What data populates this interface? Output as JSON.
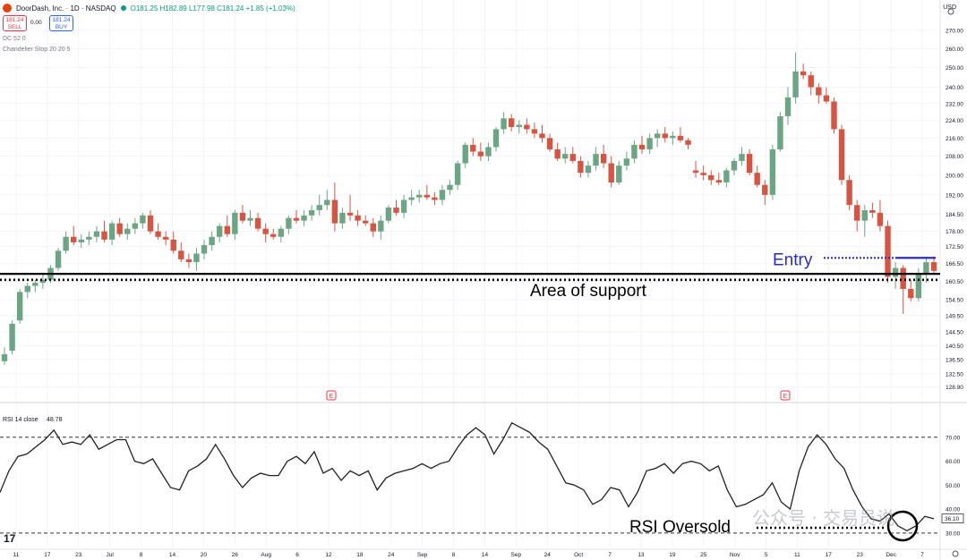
{
  "header": {
    "symbol": "DoorDash, Inc. · 1D · NASDAQ",
    "ohlc": "O181.25 H182.89 L177.98 C181.24 +1.85 (+1.03%)",
    "sell_price": "181.24",
    "sell_label": "SELL",
    "spread": "0.00",
    "buy_price": "181.24",
    "buy_label": "BUY",
    "indicator_1": "DC 52 0",
    "indicator_2": "Chandelier Stop 20 20 5",
    "currency": "USD"
  },
  "colors": {
    "up": "#6ba583",
    "down": "#d75442",
    "support": "#000000",
    "entry": "#2b2bc8",
    "rsi_line": "#222222",
    "earnings": "#f23645"
  },
  "annotations": {
    "support": "Area of support",
    "entry": "Entry",
    "oversold": "RSI Oversold"
  },
  "watermark": "公众号 · 交易员说",
  "chart_data": [
    {
      "type": "candlestick",
      "title": "DoorDash, Inc. · 1D · NASDAQ",
      "ylim": [
        126,
        272
      ],
      "y_scale": "log",
      "y_ticks": [
        "270.00",
        "260.00",
        "250.00",
        "240.00",
        "232.00",
        "224.00",
        "216.00",
        "208.00",
        "200.00",
        "192.00",
        "184.50",
        "178.00",
        "172.50",
        "166.50",
        "160.50",
        "154.50",
        "149.50",
        "144.50",
        "140.50",
        "136.50",
        "132.50",
        "128.90"
      ],
      "x_labels": [
        "11",
        "17",
        "23",
        "Jul",
        "8",
        "14",
        "20",
        "26",
        "Aug",
        "6",
        "12",
        "18",
        "24",
        "Sep",
        "8",
        "14",
        "Sep",
        "24",
        "Oct",
        "7",
        "13",
        "19",
        "25",
        "Nov",
        "5",
        "11",
        "17",
        "23",
        "Dec",
        "7"
      ],
      "candles": [
        [
          136,
          140,
          135,
          138
        ],
        [
          139,
          148,
          138,
          147
        ],
        [
          148,
          158,
          147,
          157
        ],
        [
          157,
          160,
          155,
          159
        ],
        [
          159,
          161,
          157,
          160
        ],
        [
          160,
          163,
          158,
          161
        ],
        [
          161,
          166,
          160,
          165
        ],
        [
          165,
          172,
          164,
          171
        ],
        [
          171,
          178,
          170,
          176
        ],
        [
          176,
          180,
          173,
          174
        ],
        [
          174,
          177,
          172,
          175
        ],
        [
          175,
          178,
          173,
          176
        ],
        [
          176,
          180,
          174,
          178
        ],
        [
          178,
          182,
          174,
          175
        ],
        [
          175,
          182,
          173,
          181
        ],
        [
          181,
          183,
          176,
          177
        ],
        [
          177,
          181,
          175,
          179
        ],
        [
          179,
          183,
          177,
          181
        ],
        [
          181,
          185,
          179,
          184
        ],
        [
          184,
          186,
          177,
          178
        ],
        [
          178,
          181,
          175,
          176
        ],
        [
          176,
          178,
          173,
          175
        ],
        [
          175,
          178,
          170,
          171
        ],
        [
          171,
          174,
          167,
          168
        ],
        [
          168,
          170,
          165,
          167
        ],
        [
          167,
          172,
          164,
          170
        ],
        [
          170,
          175,
          168,
          173
        ],
        [
          173,
          178,
          171,
          176
        ],
        [
          176,
          181,
          174,
          180
        ],
        [
          180,
          184,
          176,
          177
        ],
        [
          177,
          186,
          175,
          185
        ],
        [
          185,
          188,
          181,
          182
        ],
        [
          182,
          186,
          180,
          183
        ],
        [
          183,
          185,
          178,
          179
        ],
        [
          179,
          181,
          174,
          177
        ],
        [
          177,
          179,
          175,
          176
        ],
        [
          176,
          180,
          174,
          179
        ],
        [
          179,
          184,
          177,
          183
        ],
        [
          183,
          186,
          181,
          182
        ],
        [
          182,
          186,
          180,
          184
        ],
        [
          184,
          188,
          182,
          186
        ],
        [
          186,
          192,
          184,
          188
        ],
        [
          188,
          194,
          186,
          190
        ],
        [
          190,
          197,
          178,
          181
        ],
        [
          181,
          187,
          179,
          185
        ],
        [
          185,
          192,
          182,
          184
        ],
        [
          184,
          186,
          180,
          182
        ],
        [
          182,
          184,
          180,
          181
        ],
        [
          181,
          183,
          176,
          178
        ],
        [
          178,
          184,
          175,
          182
        ],
        [
          182,
          188,
          181,
          187
        ],
        [
          187,
          190,
          184,
          185
        ],
        [
          185,
          192,
          183,
          190
        ],
        [
          190,
          194,
          188,
          191
        ],
        [
          191,
          194,
          189,
          192
        ],
        [
          192,
          196,
          190,
          191
        ],
        [
          191,
          193,
          188,
          190
        ],
        [
          190,
          196,
          188,
          194
        ],
        [
          194,
          198,
          192,
          196
        ],
        [
          196,
          206,
          194,
          205
        ],
        [
          205,
          214,
          203,
          213
        ],
        [
          213,
          216,
          208,
          210
        ],
        [
          210,
          214,
          206,
          208
        ],
        [
          208,
          214,
          206,
          212
        ],
        [
          212,
          221,
          210,
          220
        ],
        [
          220,
          228,
          218,
          225
        ],
        [
          225,
          227,
          219,
          221
        ],
        [
          221,
          224,
          218,
          222
        ],
        [
          222,
          225,
          218,
          220
        ],
        [
          220,
          223,
          216,
          218
        ],
        [
          218,
          222,
          214,
          216
        ],
        [
          216,
          218,
          210,
          211
        ],
        [
          211,
          214,
          206,
          207
        ],
        [
          207,
          212,
          205,
          209
        ],
        [
          209,
          212,
          205,
          206
        ],
        [
          206,
          208,
          199,
          201
        ],
        [
          201,
          206,
          199,
          204
        ],
        [
          204,
          212,
          202,
          209
        ],
        [
          209,
          213,
          203,
          205
        ],
        [
          205,
          208,
          195,
          197
        ],
        [
          197,
          206,
          196,
          204
        ],
        [
          204,
          210,
          202,
          207
        ],
        [
          207,
          215,
          205,
          213
        ],
        [
          213,
          217,
          209,
          211
        ],
        [
          211,
          218,
          209,
          216
        ],
        [
          216,
          220,
          212,
          218
        ],
        [
          218,
          221,
          214,
          216
        ],
        [
          216,
          219,
          213,
          217
        ],
        [
          217,
          221,
          214,
          215
        ],
        [
          215,
          216,
          211,
          213
        ],
        [
          202,
          206,
          199,
          201
        ],
        [
          201,
          204,
          198,
          200
        ],
        [
          200,
          202,
          196,
          198
        ],
        [
          198,
          201,
          196,
          197
        ],
        [
          197,
          203,
          195,
          202
        ],
        [
          202,
          207,
          200,
          206
        ],
        [
          206,
          212,
          204,
          209
        ],
        [
          209,
          211,
          200,
          201
        ],
        [
          201,
          204,
          195,
          196
        ],
        [
          196,
          198,
          188,
          192
        ],
        [
          192,
          213,
          190,
          211
        ],
        [
          211,
          228,
          210,
          226
        ],
        [
          226,
          240,
          222,
          235
        ],
        [
          235,
          258,
          232,
          248
        ],
        [
          248,
          252,
          244,
          246
        ],
        [
          246,
          248,
          236,
          240
        ],
        [
          240,
          242,
          232,
          236
        ],
        [
          236,
          240,
          232,
          233
        ],
        [
          233,
          235,
          218,
          220
        ],
        [
          220,
          222,
          196,
          198
        ],
        [
          198,
          200,
          186,
          188
        ],
        [
          188,
          190,
          178,
          182
        ],
        [
          182,
          188,
          176,
          186
        ],
        [
          186,
          189,
          183,
          185
        ],
        [
          185,
          190,
          178,
          180
        ],
        [
          180,
          182,
          160,
          162
        ],
        [
          162,
          167,
          158,
          165
        ],
        [
          165,
          166,
          150,
          158
        ],
        [
          158,
          161,
          154,
          155
        ],
        [
          155,
          165,
          154,
          163
        ],
        [
          163,
          169,
          160,
          167
        ],
        [
          167,
          169,
          163,
          164
        ]
      ],
      "support_level": 163,
      "support_level_lower": 161,
      "entry_level": 168.5
    },
    {
      "type": "line",
      "title": "RSI 14 close",
      "value_label": "48.78",
      "last_value": "36.10",
      "ylim": [
        24,
        80
      ],
      "y_ticks": [
        "70.00",
        "60.00",
        "50.00",
        "40.00",
        "30.00"
      ],
      "levels": [
        70,
        30
      ],
      "values": [
        47,
        56,
        62,
        63,
        66,
        69,
        73,
        67,
        68,
        67,
        71,
        65,
        67,
        69,
        69,
        60,
        59,
        61,
        55,
        49,
        48,
        56,
        58,
        61,
        67,
        61,
        54,
        49,
        53,
        55,
        54,
        54,
        60,
        62,
        59,
        64,
        55,
        57,
        52,
        56,
        54,
        56,
        48,
        53,
        55,
        56,
        57,
        59,
        57,
        59,
        60,
        66,
        71,
        74,
        71,
        63,
        69,
        76,
        74,
        72,
        68,
        65,
        58,
        51,
        50,
        48,
        42,
        44,
        49,
        48,
        41,
        47,
        56,
        57,
        59,
        55,
        59,
        60,
        59,
        56,
        58,
        48,
        41,
        42,
        44,
        46,
        51,
        43,
        40,
        56,
        66,
        71,
        67,
        61,
        57,
        48,
        41,
        36,
        35,
        38,
        33,
        31,
        33,
        37,
        36
      ]
    }
  ]
}
